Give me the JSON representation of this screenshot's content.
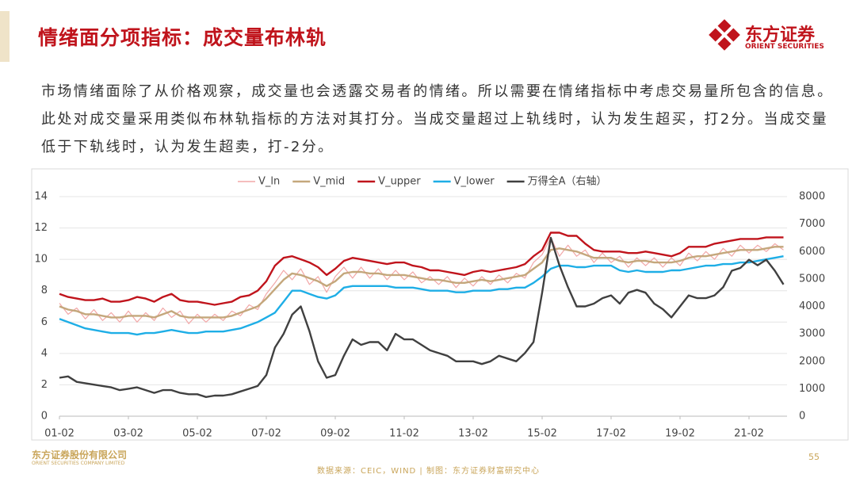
{
  "header": {
    "title": "情绪面分项指标：成交量布林轨",
    "logo_name": "东方证券",
    "logo_sub": "ORIENT SECURITIES"
  },
  "body_text": "市场情绪面除了从价格观察，成交量也会透露交易者的情绪。所以需要在情绪指标中考虑交易量所包含的信息。此处对成交量采用类似布林轨指标的方法对其打分。当成交量超过上轨线时，认为发生超买，打2分。当成交量低于下轨线时，认为发生超卖，打-2分。",
  "chart_data": {
    "type": "line",
    "categories": [
      "01-02",
      null,
      null,
      null,
      null,
      null,
      null,
      null,
      "03-02",
      null,
      null,
      null,
      null,
      null,
      null,
      null,
      "05-02",
      null,
      null,
      null,
      null,
      null,
      null,
      null,
      "07-02",
      null,
      null,
      null,
      null,
      null,
      null,
      null,
      "09-02",
      null,
      null,
      null,
      null,
      null,
      null,
      null,
      "11-02",
      null,
      null,
      null,
      null,
      null,
      null,
      null,
      "13-02",
      null,
      null,
      null,
      null,
      null,
      null,
      null,
      "15-02",
      null,
      null,
      null,
      null,
      null,
      null,
      null,
      "17-02",
      null,
      null,
      null,
      null,
      null,
      null,
      null,
      "19-02",
      null,
      null,
      null,
      null,
      null,
      null,
      null,
      "21-02",
      null,
      null,
      null,
      null
    ],
    "ylim": [
      0,
      14
    ],
    "yticks": [
      0,
      2,
      4,
      6,
      8,
      10,
      12,
      14
    ],
    "y2lim": [
      0,
      8000
    ],
    "y2ticks": [
      0,
      1000,
      2000,
      3000,
      4000,
      5000,
      6000,
      7000,
      8000
    ],
    "legend": "top",
    "series": [
      {
        "name": "V_ln",
        "color": "#f2a7a7",
        "values": [
          7.2,
          6.5,
          6.9,
          6.2,
          6.8,
          6.1,
          6.6,
          6.0,
          6.7,
          6.0,
          6.6,
          6.1,
          6.9,
          6.3,
          6.7,
          5.9,
          6.5,
          6.0,
          6.5,
          6.1,
          6.7,
          6.4,
          7.1,
          6.8,
          7.8,
          8.5,
          9.3,
          8.7,
          9.4,
          8.4,
          8.9,
          7.9,
          8.9,
          9.5,
          8.8,
          9.5,
          8.8,
          9.4,
          8.7,
          9.3,
          8.7,
          9.2,
          8.5,
          8.9,
          8.4,
          8.9,
          8.2,
          8.8,
          8.3,
          8.9,
          8.4,
          9.0,
          8.5,
          9.1,
          8.8,
          9.8,
          10.3,
          11.4,
          10.2,
          10.9,
          10.2,
          10.6,
          9.8,
          10.4,
          9.8,
          10.2,
          9.5,
          10.1,
          9.6,
          10.1,
          9.5,
          10.1,
          9.6,
          10.4,
          9.9,
          10.5,
          10.0,
          10.7,
          10.2,
          10.9,
          10.4,
          10.9,
          10.5,
          11.0,
          10.6
        ]
      },
      {
        "name": "V_mid",
        "color": "#c4a77c",
        "values": [
          7.0,
          6.8,
          6.7,
          6.5,
          6.5,
          6.4,
          6.3,
          6.3,
          6.4,
          6.4,
          6.4,
          6.3,
          6.5,
          6.7,
          6.4,
          6.3,
          6.3,
          6.3,
          6.3,
          6.3,
          6.4,
          6.6,
          6.8,
          7.0,
          7.5,
          8.1,
          8.7,
          9.1,
          9.0,
          8.8,
          8.6,
          8.3,
          8.6,
          9.1,
          9.2,
          9.2,
          9.1,
          9.1,
          9.0,
          9.0,
          9.0,
          8.9,
          8.8,
          8.7,
          8.7,
          8.6,
          8.5,
          8.5,
          8.6,
          8.7,
          8.6,
          8.7,
          8.8,
          8.9,
          9.0,
          9.4,
          9.8,
          10.6,
          10.7,
          10.6,
          10.5,
          10.3,
          10.1,
          10.1,
          10.1,
          9.9,
          9.8,
          9.9,
          9.9,
          9.8,
          9.8,
          9.8,
          9.9,
          10.1,
          10.2,
          10.2,
          10.3,
          10.4,
          10.5,
          10.6,
          10.6,
          10.6,
          10.7,
          10.8,
          10.8
        ]
      },
      {
        "name": "V_upper",
        "color": "#c0141c",
        "values": [
          7.8,
          7.6,
          7.5,
          7.4,
          7.4,
          7.5,
          7.3,
          7.3,
          7.4,
          7.6,
          7.5,
          7.3,
          7.6,
          7.8,
          7.4,
          7.3,
          7.3,
          7.2,
          7.1,
          7.2,
          7.3,
          7.6,
          7.7,
          8.0,
          8.6,
          9.6,
          10.1,
          10.2,
          10.0,
          9.8,
          9.5,
          9.0,
          9.4,
          9.9,
          10.1,
          10.0,
          9.9,
          9.8,
          9.7,
          9.8,
          9.8,
          9.6,
          9.5,
          9.3,
          9.3,
          9.2,
          9.1,
          9.0,
          9.2,
          9.3,
          9.2,
          9.3,
          9.4,
          9.5,
          9.7,
          10.2,
          10.6,
          11.7,
          11.7,
          11.5,
          11.5,
          11.0,
          10.6,
          10.5,
          10.5,
          10.5,
          10.4,
          10.4,
          10.5,
          10.4,
          10.3,
          10.2,
          10.4,
          10.8,
          10.8,
          10.8,
          11.0,
          11.1,
          11.2,
          11.3,
          11.3,
          11.3,
          11.4,
          11.4,
          11.4
        ]
      },
      {
        "name": "V_lower",
        "color": "#1eaee6",
        "values": [
          6.2,
          6.0,
          5.8,
          5.6,
          5.5,
          5.4,
          5.3,
          5.3,
          5.3,
          5.2,
          5.3,
          5.3,
          5.4,
          5.5,
          5.4,
          5.3,
          5.3,
          5.4,
          5.4,
          5.4,
          5.5,
          5.6,
          5.8,
          6.0,
          6.3,
          6.6,
          7.3,
          8.0,
          8.0,
          7.8,
          7.6,
          7.5,
          7.7,
          8.2,
          8.3,
          8.3,
          8.3,
          8.3,
          8.3,
          8.2,
          8.2,
          8.2,
          8.1,
          8.0,
          8.0,
          8.0,
          7.9,
          7.9,
          8.0,
          8.0,
          8.0,
          8.1,
          8.1,
          8.2,
          8.2,
          8.5,
          8.9,
          9.4,
          9.6,
          9.6,
          9.5,
          9.5,
          9.6,
          9.6,
          9.6,
          9.3,
          9.2,
          9.3,
          9.2,
          9.2,
          9.2,
          9.3,
          9.3,
          9.4,
          9.5,
          9.6,
          9.6,
          9.7,
          9.7,
          9.8,
          9.8,
          9.9,
          10.0,
          10.1,
          10.2
        ]
      },
      {
        "name": "万得全A（右轴）",
        "color": "#404040",
        "axis": "y2",
        "values": [
          1400,
          1450,
          1250,
          1200,
          1150,
          1100,
          1050,
          950,
          1000,
          1050,
          950,
          850,
          950,
          950,
          850,
          800,
          800,
          700,
          750,
          750,
          800,
          900,
          1000,
          1100,
          1500,
          2500,
          3000,
          3700,
          4000,
          3100,
          2000,
          1400,
          1500,
          2200,
          2800,
          2600,
          2700,
          2700,
          2400,
          3000,
          2800,
          2800,
          2600,
          2400,
          2300,
          2200,
          2000,
          2000,
          2000,
          1900,
          2000,
          2200,
          2100,
          2000,
          2300,
          2700,
          4500,
          6500,
          5500,
          4700,
          4000,
          4000,
          4100,
          4300,
          4400,
          4100,
          4500,
          4600,
          4500,
          4100,
          3900,
          3600,
          4000,
          4400,
          4300,
          4300,
          4400,
          4700,
          5300,
          5400,
          5700,
          5500,
          5700,
          5300,
          4800
        ]
      }
    ]
  },
  "footer": {
    "company": "东方证券股份有限公司",
    "company_en": "ORIENT SECURITIES COMPANY LIMITED",
    "source": "数据来源：CEIC，WIND  | 制图：东方证券财富研究中心",
    "page": 55
  }
}
